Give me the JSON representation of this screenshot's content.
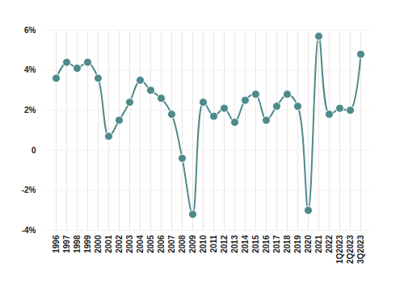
{
  "chart_data": {
    "type": "line",
    "categories": [
      "1996",
      "1997",
      "1998",
      "1999",
      "2000",
      "2001",
      "2002",
      "2003",
      "2004",
      "2005",
      "2006",
      "2007",
      "2008",
      "2009",
      "2010",
      "2011",
      "2012",
      "2013",
      "2014",
      "2015",
      "2016",
      "2017",
      "2018",
      "2019",
      "2020",
      "2021",
      "2022",
      "1Q2023",
      "2Q2023",
      "3Q2023"
    ],
    "values": [
      3.6,
      4.4,
      4.1,
      4.4,
      3.6,
      0.7,
      1.5,
      2.4,
      3.5,
      3.0,
      2.6,
      1.8,
      -0.4,
      -3.2,
      2.4,
      1.7,
      2.1,
      1.4,
      2.5,
      2.8,
      1.5,
      2.2,
      2.8,
      2.2,
      -3.0,
      5.7,
      1.8,
      2.1,
      2.0,
      4.8
    ],
    "color": "#4f8a8b",
    "marker": "circle",
    "ylim": [
      -4,
      6
    ],
    "yticks": [
      {
        "value": -4,
        "label": "-4%"
      },
      {
        "value": -2,
        "label": "-2%"
      },
      0,
      {
        "value": 2,
        "label": "2%"
      },
      {
        "value": 4,
        "label": "4%"
      },
      {
        "value": 6,
        "label": "6%"
      }
    ],
    "grid": true
  }
}
